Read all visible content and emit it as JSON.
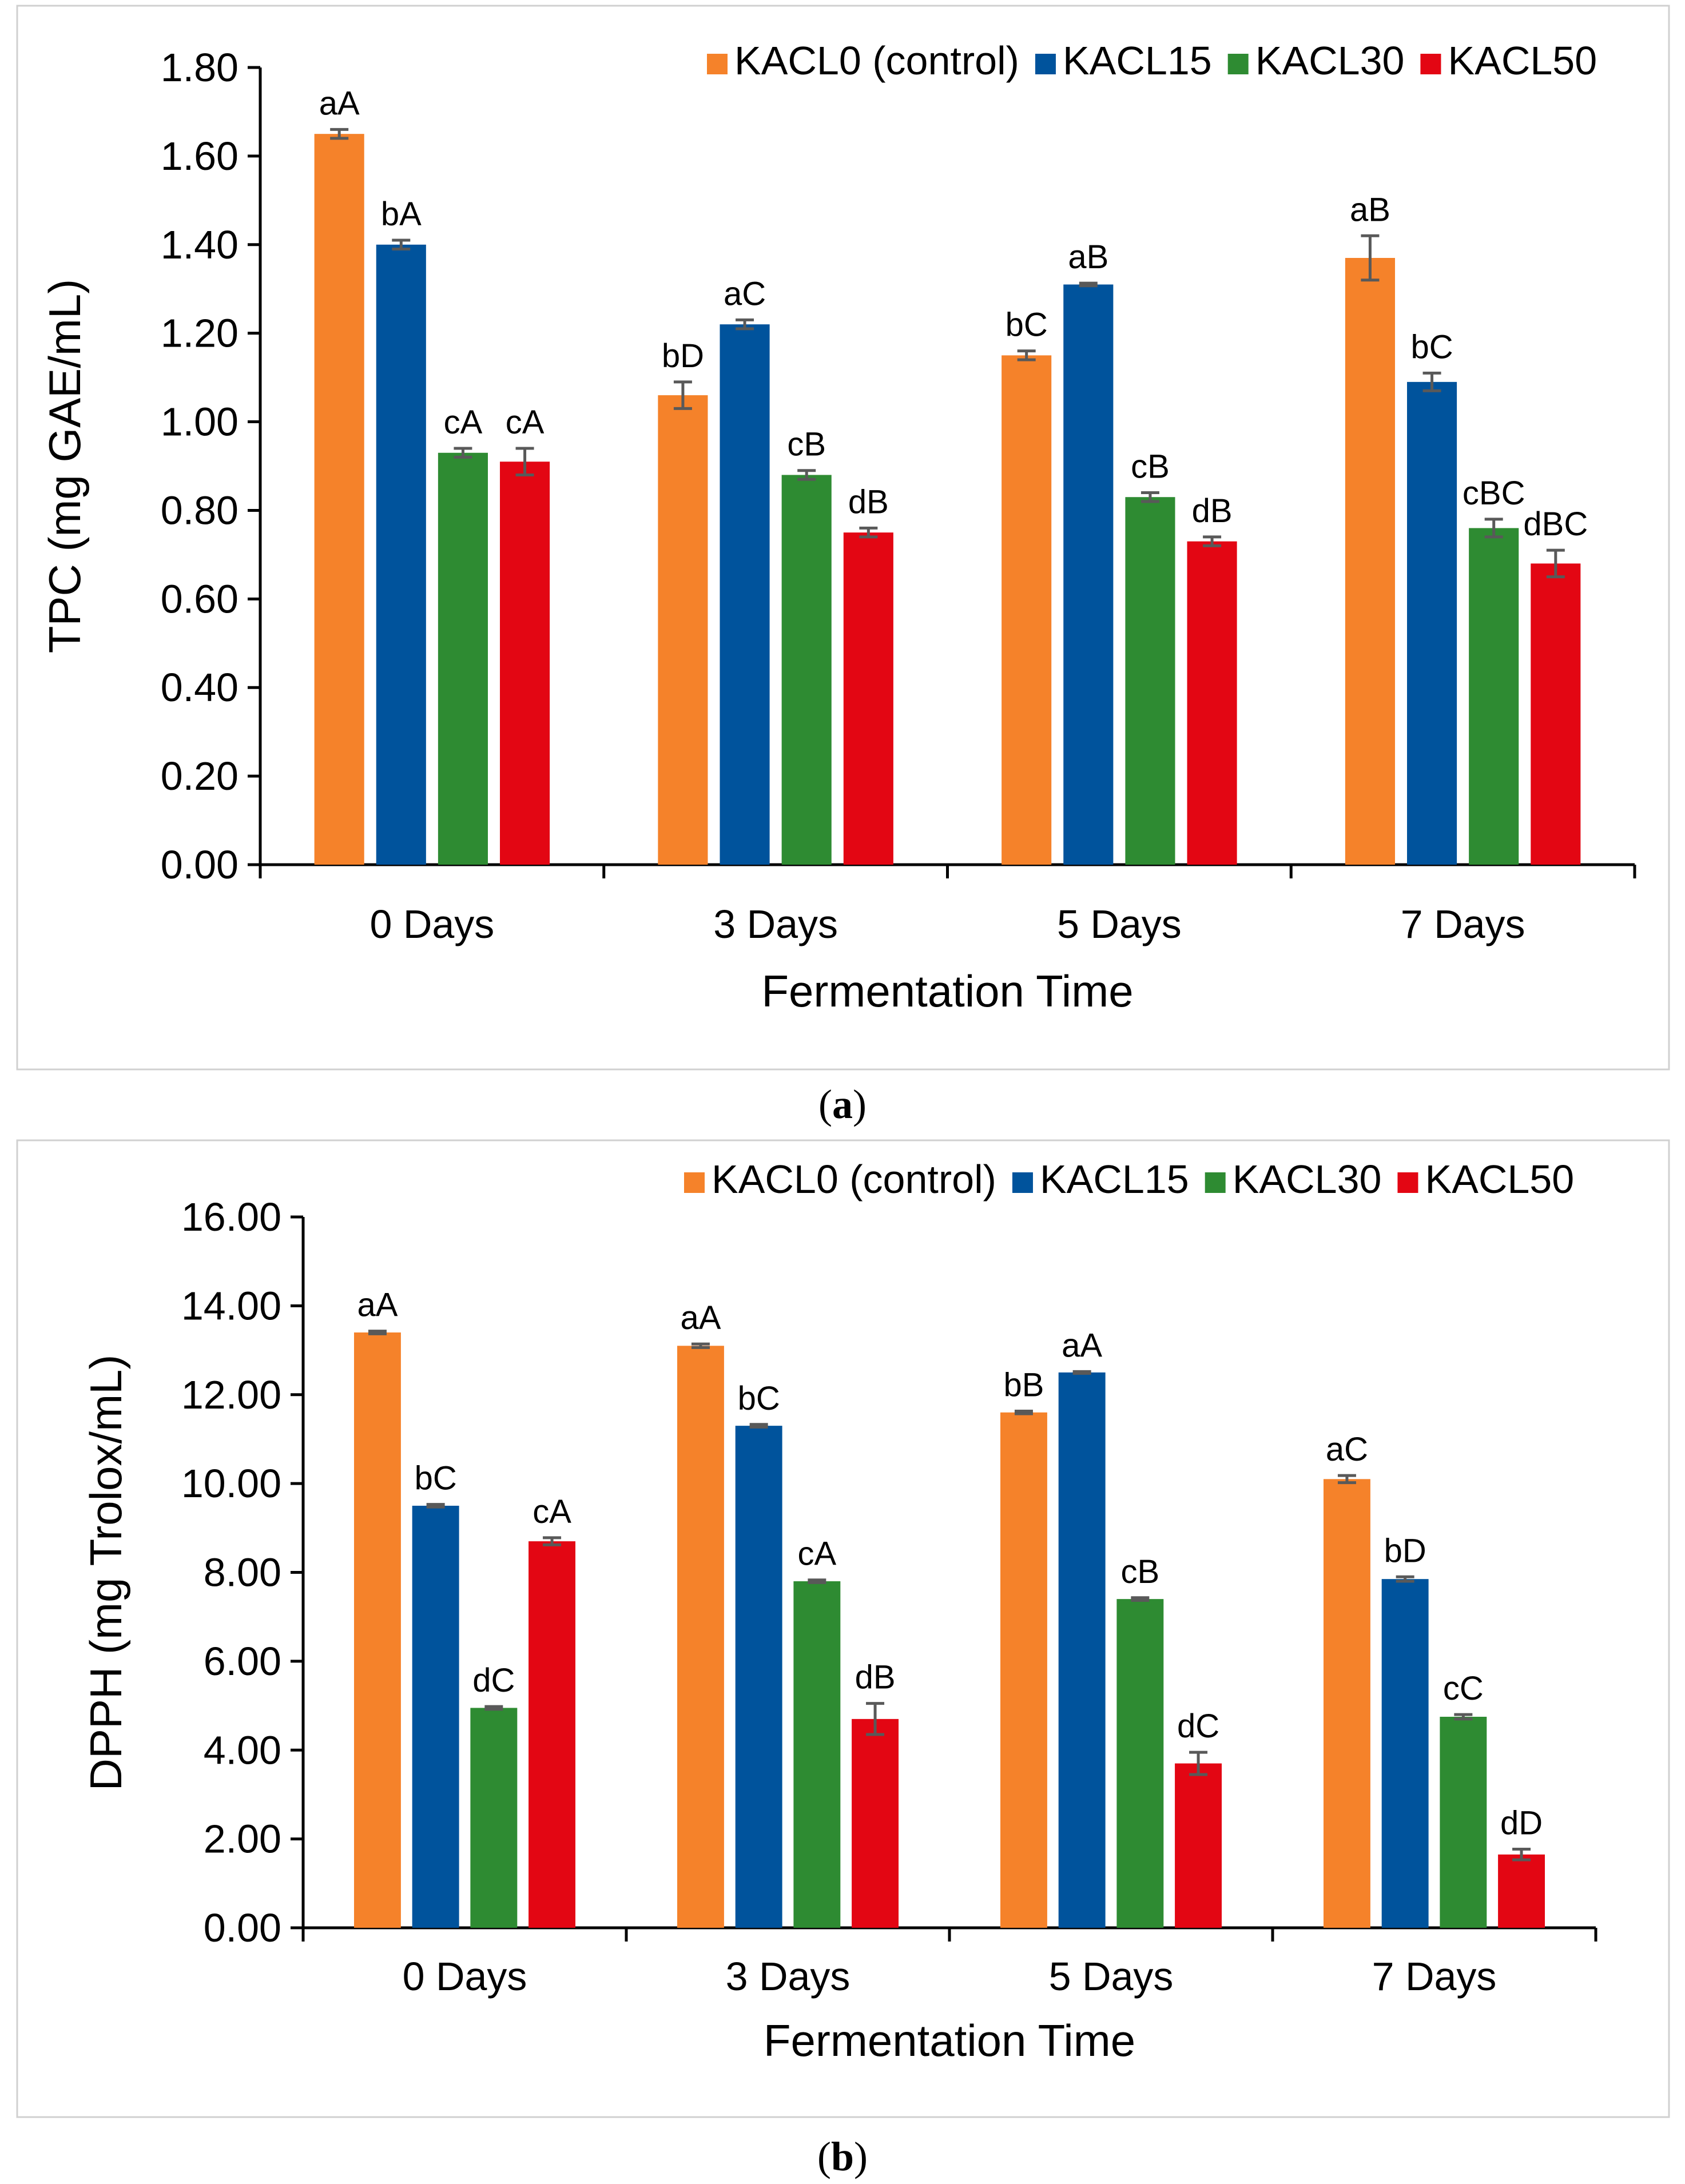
{
  "chart_data": [
    {
      "type": "bar",
      "panel_label": "a",
      "categories": [
        "0 Days",
        "3 Days",
        "5 Days",
        "7 Days"
      ],
      "xlabel": "Fermentation Time",
      "ylabel": "TPC (mg GAE/mL)",
      "ylim": [
        0,
        1.8
      ],
      "yticks": [
        "0.00",
        "0.20",
        "0.40",
        "0.60",
        "0.80",
        "1.00",
        "1.20",
        "1.40",
        "1.60",
        "1.80"
      ],
      "legend_position": "top-right",
      "series": [
        {
          "name": "KACL0 (control)",
          "color": "#F5822A",
          "values": [
            1.65,
            1.06,
            1.15,
            1.37
          ],
          "errors": [
            0.01,
            0.03,
            0.01,
            0.05
          ],
          "labels": [
            "aA",
            "bD",
            "bC",
            "aB"
          ]
        },
        {
          "name": "KACL15",
          "color": "#00539C",
          "values": [
            1.4,
            1.22,
            1.31,
            1.09
          ],
          "errors": [
            0.01,
            0.01,
            0.003,
            0.02
          ],
          "labels": [
            "bA",
            "aC",
            "aB",
            "bC"
          ]
        },
        {
          "name": "KACL30",
          "color": "#2E8B32",
          "values": [
            0.93,
            0.88,
            0.83,
            0.76
          ],
          "errors": [
            0.01,
            0.01,
            0.01,
            0.02
          ],
          "labels": [
            "cA",
            "cB",
            "cB",
            "cBC"
          ]
        },
        {
          "name": "KACL50",
          "color": "#E30613",
          "values": [
            0.91,
            0.75,
            0.73,
            0.68
          ],
          "errors": [
            0.03,
            0.01,
            0.01,
            0.03
          ],
          "labels": [
            "cA",
            "dB",
            "dB",
            "dBC"
          ]
        }
      ]
    },
    {
      "type": "bar",
      "panel_label": "b",
      "categories": [
        "0 Days",
        "3 Days",
        "5 Days",
        "7 Days"
      ],
      "xlabel": "Fermentation Time",
      "ylabel": "DPPH (mg Trolox/mL)",
      "ylim": [
        0,
        16
      ],
      "yticks": [
        "0.00",
        "2.00",
        "4.00",
        "6.00",
        "8.00",
        "10.00",
        "12.00",
        "14.00",
        "16.00"
      ],
      "legend_position": "top-right",
      "series": [
        {
          "name": "KACL0 (control)",
          "color": "#F5822A",
          "values": [
            13.4,
            13.1,
            11.6,
            10.1
          ],
          "errors": [
            0.03,
            0.04,
            0.03,
            0.08
          ],
          "labels": [
            "aA",
            "aA",
            "bB",
            "aC"
          ]
        },
        {
          "name": "KACL15",
          "color": "#00539C",
          "values": [
            9.5,
            11.3,
            12.5,
            7.85
          ],
          "errors": [
            0.03,
            0.03,
            0.02,
            0.05
          ],
          "labels": [
            "bC",
            "bC",
            "aA",
            "bD"
          ]
        },
        {
          "name": "KACL30",
          "color": "#2E8B32",
          "values": [
            4.95,
            7.8,
            7.4,
            4.75
          ],
          "errors": [
            0.03,
            0.03,
            0.03,
            0.05
          ],
          "labels": [
            "dC",
            "cA",
            "cB",
            "cC"
          ]
        },
        {
          "name": "KACL50",
          "color": "#E30613",
          "values": [
            8.7,
            4.7,
            3.7,
            1.65
          ],
          "errors": [
            0.08,
            0.35,
            0.25,
            0.12
          ],
          "labels": [
            "cA",
            "dB",
            "dC",
            "dD"
          ]
        }
      ]
    }
  ]
}
